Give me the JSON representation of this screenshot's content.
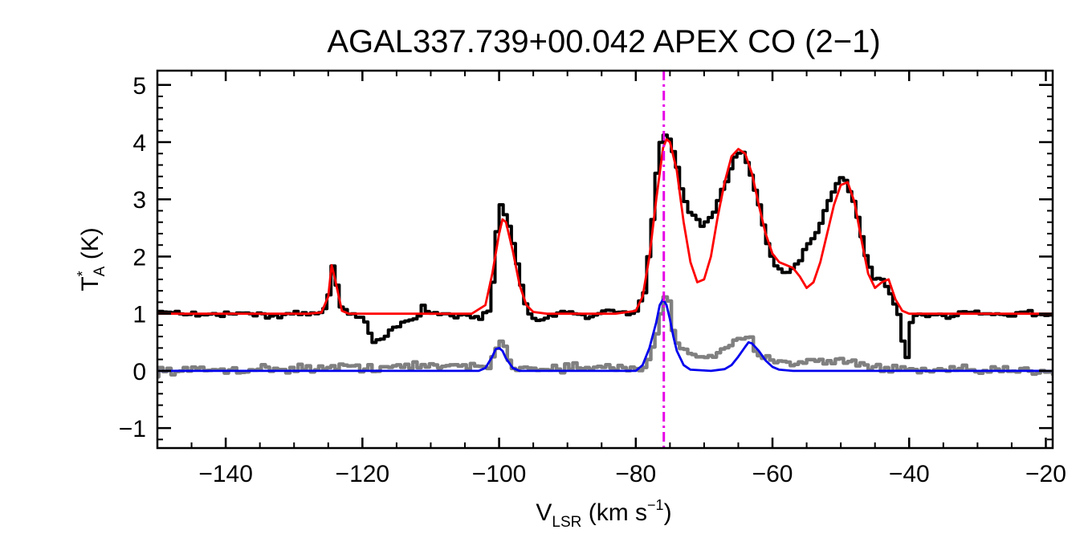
{
  "chart_data": {
    "type": "line",
    "title": "AGAL337.739+00.042  APEX CO (2−1)",
    "xlabel": {
      "main": "V",
      "sub": "LSR",
      "post": " (km s",
      "sup": "−1",
      "close": ")"
    },
    "ylabel": {
      "main": "T",
      "sup": "*",
      "sub": "A",
      "post": " (K)"
    },
    "xlim": [
      -150,
      -19
    ],
    "ylim": [
      -1.35,
      5.25
    ],
    "xticks": [
      {
        "value": -140,
        "label": "−140"
      },
      {
        "value": -120,
        "label": "−120"
      },
      {
        "value": -100,
        "label": "−100"
      },
      {
        "value": -80,
        "label": "−80"
      },
      {
        "value": -60,
        "label": "−60"
      },
      {
        "value": -40,
        "label": "−40"
      },
      {
        "value": -20,
        "label": "−20"
      }
    ],
    "yticks": [
      {
        "value": -1,
        "label": "−1"
      },
      {
        "value": 0,
        "label": "0"
      },
      {
        "value": 1,
        "label": "1"
      },
      {
        "value": 2,
        "label": "2"
      },
      {
        "value": 3,
        "label": "3"
      },
      {
        "value": 4,
        "label": "4"
      },
      {
        "value": 5,
        "label": "5"
      }
    ],
    "vline": {
      "x": -75.9,
      "color": "#e600e6",
      "style": "dash-dot"
    },
    "series": [
      {
        "color": "#000000",
        "style": "step",
        "x": [
          -150,
          -146,
          -142,
          -138,
          -134,
          -130,
          -127,
          -125.5,
          -124.5,
          -123.5,
          -122,
          -120,
          -118.5,
          -117.5,
          -116,
          -114,
          -112,
          -111.5,
          -111,
          -109,
          -107,
          -105,
          -103,
          -101.5,
          -100.5,
          -100,
          -99.5,
          -98.5,
          -97.5,
          -96.5,
          -95.5,
          -95,
          -93,
          -91,
          -89,
          -87,
          -85,
          -83,
          -81,
          -80,
          -79,
          -78,
          -77,
          -76.5,
          -75.5,
          -74.5,
          -73.5,
          -72.5,
          -71.5,
          -70.5,
          -69.5,
          -68.5,
          -67.5,
          -66.5,
          -65.5,
          -64.5,
          -63.5,
          -62.5,
          -61.5,
          -60.5,
          -59.5,
          -58.5,
          -57.5,
          -56.5,
          -55.5,
          -54.5,
          -53.5,
          -52.5,
          -51.5,
          -50.5,
          -49.5,
          -48.5,
          -47.5,
          -46.5,
          -45.5,
          -44.5,
          -43.5,
          -42.5,
          -41.5,
          -41,
          -40.5,
          -40,
          -39.5,
          -38.5,
          -37.5,
          -36,
          -34,
          -32,
          -30,
          -28,
          -26,
          -24,
          -22,
          -20,
          -19
        ],
        "y": [
          1.05,
          1.0,
          0.98,
          1.02,
          0.95,
          1.0,
          1.0,
          1.1,
          1.9,
          1.1,
          1.0,
          0.9,
          0.5,
          0.55,
          0.75,
          0.85,
          0.95,
          1.2,
          1.05,
          1.0,
          0.95,
          1.0,
          0.9,
          1.1,
          2.6,
          2.9,
          2.8,
          2.4,
          1.8,
          1.2,
          0.95,
          0.85,
          0.95,
          1.05,
          1.0,
          0.95,
          1.05,
          1.0,
          1.0,
          1.05,
          1.4,
          2.4,
          3.7,
          4.05,
          4.1,
          3.7,
          3.1,
          2.8,
          2.7,
          2.5,
          2.6,
          2.9,
          3.2,
          3.5,
          3.8,
          3.85,
          3.5,
          3.0,
          2.5,
          2.0,
          1.8,
          1.7,
          1.75,
          1.9,
          2.1,
          2.3,
          2.5,
          2.8,
          3.1,
          3.35,
          3.3,
          3.0,
          2.5,
          2.0,
          1.6,
          1.6,
          1.5,
          1.2,
          0.85,
          0.3,
          0.2,
          0.85,
          0.95,
          1.0,
          0.95,
          1.0,
          0.95,
          1.05,
          1.0,
          1.0,
          0.95,
          1.05,
          0.98,
          1.0,
          1.0
        ]
      },
      {
        "color": "#ff0000",
        "style": "line",
        "x": [
          -150,
          -128,
          -126,
          -125,
          -124.5,
          -124,
          -123,
          -122,
          -120,
          -104,
          -102,
          -101,
          -100,
          -99.5,
          -99,
          -98,
          -97,
          -96,
          -95,
          -93,
          -88,
          -83,
          -80,
          -79,
          -78,
          -77,
          -76,
          -75.5,
          -75,
          -74,
          -73,
          -72,
          -71,
          -70,
          -69,
          -68,
          -67,
          -66,
          -65,
          -64,
          -63,
          -62,
          -61,
          -60,
          -59,
          -58,
          -57,
          -56,
          -55,
          -54,
          -53,
          -52,
          -51,
          -50,
          -49,
          -48,
          -47,
          -46,
          -45,
          -44,
          -43,
          -42,
          -41,
          -40,
          -38,
          -30,
          -19
        ],
        "y": [
          1.0,
          1.0,
          1.02,
          1.3,
          1.85,
          1.6,
          1.05,
          1.0,
          1.0,
          1.0,
          1.15,
          1.7,
          2.4,
          2.65,
          2.6,
          2.1,
          1.5,
          1.15,
          1.03,
          1.0,
          1.0,
          1.0,
          1.05,
          1.3,
          2.0,
          3.0,
          3.9,
          4.05,
          4.0,
          3.5,
          2.6,
          1.9,
          1.55,
          1.6,
          2.0,
          2.7,
          3.3,
          3.75,
          3.88,
          3.8,
          3.45,
          2.9,
          2.4,
          2.05,
          1.9,
          1.85,
          1.8,
          1.65,
          1.45,
          1.55,
          1.9,
          2.4,
          2.9,
          3.25,
          3.3,
          2.95,
          2.3,
          1.7,
          1.45,
          1.55,
          1.6,
          1.25,
          1.05,
          1.0,
          1.0,
          1.0,
          1.0
        ]
      },
      {
        "color": "#808080",
        "style": "step-noisy",
        "baseline": 0.0,
        "noise": 0.07,
        "x": [
          -150,
          -101.5,
          -100.5,
          -100,
          -99,
          -98,
          -79,
          -78,
          -77,
          -76.5,
          -76,
          -75.5,
          -75,
          -74,
          -73,
          -72,
          -71,
          -68,
          -67,
          -66,
          -65,
          -64,
          -63.5,
          -63,
          -62,
          -61,
          -60,
          -58,
          -56,
          -52,
          -50,
          -49,
          -48,
          -45,
          -40,
          -19
        ],
        "y": [
          0.0,
          0.1,
          0.45,
          0.5,
          0.3,
          0.05,
          0.05,
          0.3,
          0.7,
          1.1,
          1.35,
          1.25,
          0.8,
          0.45,
          0.38,
          0.3,
          0.25,
          0.3,
          0.38,
          0.45,
          0.55,
          0.58,
          0.55,
          0.4,
          0.3,
          0.25,
          0.2,
          0.18,
          0.15,
          0.15,
          0.2,
          0.2,
          0.12,
          0.05,
          0.0,
          0.0
        ]
      },
      {
        "color": "#0000ee",
        "style": "line",
        "x": [
          -150,
          -103,
          -102,
          -101,
          -100.5,
          -100,
          -99.5,
          -99,
          -98,
          -97,
          -80,
          -79,
          -78,
          -77,
          -76.5,
          -76,
          -75.5,
          -75,
          -74.5,
          -74,
          -73,
          -72,
          -69,
          -67,
          -66,
          -65,
          -64,
          -63.5,
          -63,
          -62,
          -61,
          -60,
          -59,
          -57,
          -19
        ],
        "y": [
          0.0,
          0.0,
          0.05,
          0.25,
          0.38,
          0.4,
          0.35,
          0.22,
          0.05,
          0.0,
          0.0,
          0.1,
          0.4,
          0.85,
          1.15,
          1.25,
          1.15,
          0.9,
          0.6,
          0.35,
          0.1,
          0.02,
          0.0,
          0.03,
          0.1,
          0.25,
          0.42,
          0.5,
          0.48,
          0.35,
          0.18,
          0.07,
          0.02,
          0.0,
          0.0
        ]
      }
    ]
  }
}
